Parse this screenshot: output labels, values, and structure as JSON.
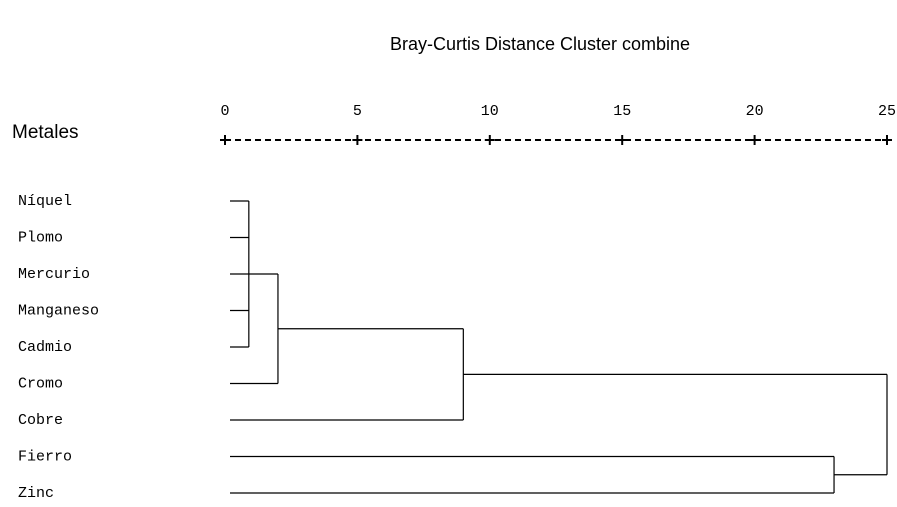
{
  "chart_data": {
    "type": "dendrogram",
    "title": "Bray-Curtis Distance Cluster combine",
    "axis_label": "Metales",
    "leaves": [
      "Níquel",
      "Plomo",
      "Mercurio",
      "Manganeso",
      "Cadmio",
      "Cromo",
      "Cobre",
      "Fierro",
      "Zinc"
    ],
    "merges": [
      {
        "join": [
          0,
          1,
          2,
          3,
          4
        ],
        "distance": 0.9
      },
      {
        "join": [
          9,
          5
        ],
        "distance": 2.0
      },
      {
        "join": [
          10,
          6
        ],
        "distance": 9.0
      },
      {
        "join": [
          7,
          8
        ],
        "distance": 23.0
      },
      {
        "join": [
          11,
          12
        ],
        "distance": 25
      }
    ],
    "xlim": [
      0,
      25
    ],
    "xticks": [
      0,
      5,
      10,
      15,
      20,
      25
    ],
    "color": "#000000"
  }
}
